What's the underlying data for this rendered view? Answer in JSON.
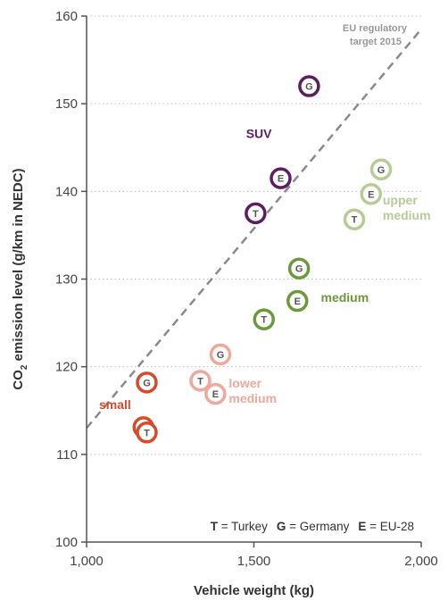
{
  "chart_data": {
    "type": "scatter",
    "xlabel": "Vehicle weight (kg)",
    "ylabel": "CO₂ emission level (g/km in NEDC)",
    "ylabel_parts": {
      "pre": "CO",
      "sub": "2",
      "post": " emission level (g/km in NEDC)"
    },
    "xlim": [
      1000,
      2000
    ],
    "ylim": [
      100,
      160
    ],
    "x_ticks": [
      {
        "value": 1000,
        "label": "1,000"
      },
      {
        "value": 1500,
        "label": "1,500"
      },
      {
        "value": 2000,
        "label": "2,000"
      }
    ],
    "y_ticks": [
      {
        "value": 100,
        "label": "100"
      },
      {
        "value": 110,
        "label": "110"
      },
      {
        "value": 120,
        "label": "120"
      },
      {
        "value": 130,
        "label": "130"
      },
      {
        "value": 140,
        "label": "140"
      },
      {
        "value": 150,
        "label": "150"
      },
      {
        "value": 160,
        "label": "160"
      }
    ],
    "grid": "horizontal dotted",
    "target_line": {
      "label_line1": "EU regulatory",
      "label_line2": "target 2015",
      "points": [
        [
          1000,
          113
        ],
        [
          2000,
          158.5
        ]
      ]
    },
    "series": [
      {
        "name": "SUV",
        "color": "#5c1f5e",
        "points": [
          {
            "x": 1665,
            "y": 152.0,
            "marker": "G"
          },
          {
            "x": 1580,
            "y": 141.5,
            "marker": "E"
          },
          {
            "x": 1505,
            "y": 137.5,
            "marker": "T"
          }
        ]
      },
      {
        "name": "upper medium",
        "color": "#b5cc96",
        "points": [
          {
            "x": 1880,
            "y": 142.5,
            "marker": "G"
          },
          {
            "x": 1850,
            "y": 139.7,
            "marker": "E"
          },
          {
            "x": 1800,
            "y": 136.8,
            "marker": "T"
          }
        ]
      },
      {
        "name": "medium",
        "color": "#6b9a3a",
        "points": [
          {
            "x": 1635,
            "y": 131.2,
            "marker": "G"
          },
          {
            "x": 1630,
            "y": 127.5,
            "marker": "E"
          },
          {
            "x": 1530,
            "y": 125.4,
            "marker": "T"
          }
        ]
      },
      {
        "name": "lower medium",
        "color": "#eda99c",
        "points": [
          {
            "x": 1400,
            "y": 121.4,
            "marker": "G"
          },
          {
            "x": 1385,
            "y": 116.9,
            "marker": "E"
          },
          {
            "x": 1340,
            "y": 118.4,
            "marker": "T"
          }
        ]
      },
      {
        "name": "small",
        "color": "#d94a2a",
        "points": [
          {
            "x": 1180,
            "y": 118.2,
            "marker": "G"
          },
          {
            "x": 1170,
            "y": 113.1,
            "marker": "E"
          },
          {
            "x": 1180,
            "y": 112.5,
            "marker": "T"
          }
        ]
      }
    ],
    "category_labels": [
      {
        "lines": [
          "SUV"
        ],
        "series": "SUV",
        "x": 1515,
        "y": 146.1
      },
      {
        "lines": [
          "upper",
          "medium"
        ],
        "series": "upper medium",
        "x": 1885,
        "y": 138.5
      },
      {
        "lines": [
          "medium"
        ],
        "series": "medium",
        "x": 1700,
        "y": 127.4
      },
      {
        "lines": [
          "lower",
          "medium"
        ],
        "series": "lower medium",
        "x": 1425,
        "y": 117.6
      },
      {
        "lines": [
          "small"
        ],
        "series": "small",
        "x": 1085,
        "y": 115.2
      }
    ],
    "legend": [
      {
        "key": "T",
        "value": "Turkey"
      },
      {
        "key": "G",
        "value": "Germany"
      },
      {
        "key": "E",
        "value": "EU-28"
      }
    ],
    "legend_separator": " = "
  }
}
